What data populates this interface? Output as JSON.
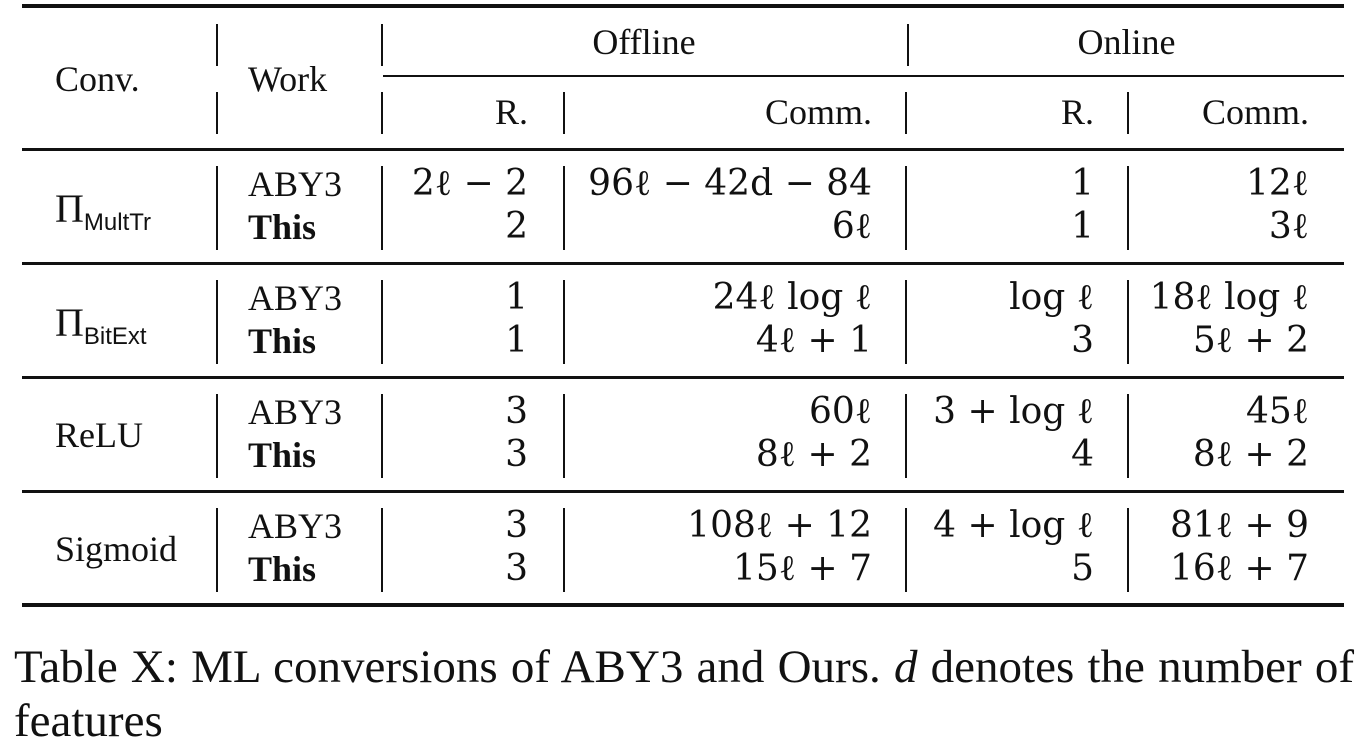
{
  "table": {
    "headers": {
      "conv": "Conv.",
      "work": "Work",
      "offline": "Offline",
      "online": "Online",
      "offline_rounds": "R.",
      "offline_comm": "Comm.",
      "online_rounds": "R.",
      "online_comm": "Comm."
    },
    "groups": [
      {
        "conv_base": "Π",
        "conv_sub": "MultTr",
        "rows": [
          {
            "work": "ABY3",
            "off_r": "2ℓ − 2",
            "off_c": "96ℓ − 42d − 84",
            "on_r": "1",
            "on_c": "12ℓ"
          },
          {
            "work": "This",
            "off_r": "2",
            "off_c": "6ℓ",
            "on_r": "1",
            "on_c": "3ℓ"
          }
        ]
      },
      {
        "conv_base": "Π",
        "conv_sub": "BitExt",
        "rows": [
          {
            "work": "ABY3",
            "off_r": "1",
            "off_c": "24ℓ log ℓ",
            "on_r": "log ℓ",
            "on_c": "18ℓ log ℓ"
          },
          {
            "work": "This",
            "off_r": "1",
            "off_c": "4ℓ + 1",
            "on_r": "3",
            "on_c": "5ℓ + 2"
          }
        ]
      },
      {
        "conv_base": "ReLU",
        "conv_sub": "",
        "rows": [
          {
            "work": "ABY3",
            "off_r": "3",
            "off_c": "60ℓ",
            "on_r": "3 + log ℓ",
            "on_c": "45ℓ"
          },
          {
            "work": "This",
            "off_r": "3",
            "off_c": "8ℓ + 2",
            "on_r": "4",
            "on_c": "8ℓ + 2"
          }
        ]
      },
      {
        "conv_base": "Sigmoid",
        "conv_sub": "",
        "rows": [
          {
            "work": "ABY3",
            "off_r": "3",
            "off_c": "108ℓ + 12",
            "on_r": "4 + log ℓ",
            "on_c": "81ℓ + 9"
          },
          {
            "work": "This",
            "off_r": "3",
            "off_c": "15ℓ + 7",
            "on_r": "5",
            "on_c": "16ℓ + 7"
          }
        ]
      }
    ]
  },
  "caption": {
    "text_before": "Table X: ML conversions of ABY3 and Ours.",
    "math_var": "d",
    "text_after": "denotes the number of features"
  }
}
